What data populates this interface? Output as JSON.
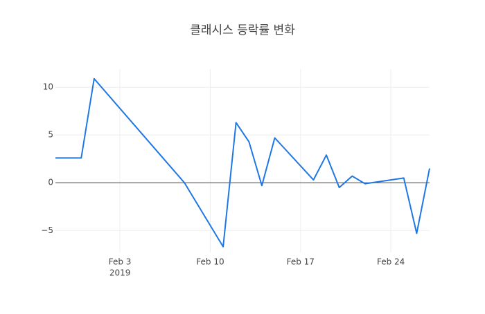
{
  "chart_data": {
    "type": "line",
    "title": "클래시스 등락률 변화",
    "x": [
      "2019-01-29",
      "2019-01-31",
      "2019-02-01",
      "2019-02-08",
      "2019-02-11",
      "2019-02-12",
      "2019-02-13",
      "2019-02-14",
      "2019-02-15",
      "2019-02-18",
      "2019-02-19",
      "2019-02-20",
      "2019-02-21",
      "2019-02-22",
      "2019-02-25",
      "2019-02-26",
      "2019-02-27"
    ],
    "series": [
      {
        "color": "#1f77e4",
        "values": [
          2.6,
          2.6,
          10.9,
          0,
          -6.7,
          6.3,
          4.3,
          -0.3,
          4.7,
          0.3,
          2.9,
          -0.5,
          0.7,
          -0.1,
          0.5,
          -5.3,
          1.5
        ]
      }
    ],
    "xlim": [
      "2019-01-29",
      "2019-02-27"
    ],
    "xticks": [
      {
        "value": "2019-02-03",
        "label": "Feb 3"
      },
      {
        "value": "2019-02-10",
        "label": "Feb 10"
      },
      {
        "value": "2019-02-17",
        "label": "Feb 17"
      },
      {
        "value": "2019-02-24",
        "label": "Feb 24"
      }
    ],
    "xtick_sublabel": "2019",
    "ylim": [
      -7.3,
      11.9
    ],
    "yticks": [
      {
        "value": -5,
        "label": "−5"
      },
      0,
      5,
      10
    ],
    "grid": true,
    "zeroline": true
  }
}
